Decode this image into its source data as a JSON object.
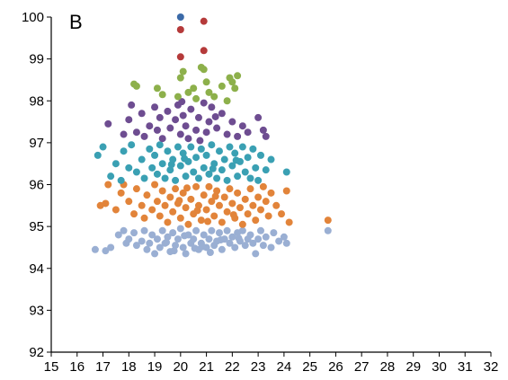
{
  "panel_label": "B",
  "colors": {
    "axis": "#000000",
    "series": {
      "a": "#9aafd3",
      "b": "#e2843a",
      "c": "#3aa0b3",
      "d": "#6e4d91",
      "e": "#8db04b",
      "f": "#b53a3a",
      "g": "#3b6aa8"
    }
  },
  "chart_data": {
    "type": "scatter",
    "title": "",
    "xlabel": "",
    "ylabel": "",
    "xlim": [
      15,
      32
    ],
    "ylim": [
      92,
      100
    ],
    "x_ticks": [
      "15",
      "16",
      "17",
      "18",
      "19",
      "20",
      "21",
      "22",
      "23",
      "24",
      "25",
      "26",
      "27",
      "28",
      "29",
      "30",
      "31",
      "32"
    ],
    "y_ticks": [
      "92",
      "93",
      "94",
      "95",
      "96",
      "97",
      "98",
      "99",
      "100"
    ],
    "grid": false,
    "legend": "none",
    "series": [
      {
        "key": "a",
        "color": "#9aafd3",
        "points": [
          [
            16.7,
            94.45
          ],
          [
            17.1,
            94.42
          ],
          [
            17.3,
            94.5
          ],
          [
            17.6,
            94.8
          ],
          [
            17.8,
            94.9
          ],
          [
            17.9,
            94.6
          ],
          [
            18.0,
            94.7
          ],
          [
            18.2,
            94.85
          ],
          [
            18.3,
            94.55
          ],
          [
            18.5,
            94.65
          ],
          [
            18.6,
            94.9
          ],
          [
            18.7,
            94.45
          ],
          [
            18.8,
            94.6
          ],
          [
            18.9,
            94.8
          ],
          [
            19.0,
            94.35
          ],
          [
            19.1,
            94.7
          ],
          [
            19.2,
            94.5
          ],
          [
            19.3,
            94.9
          ],
          [
            19.4,
            94.6
          ],
          [
            19.5,
            94.75
          ],
          [
            19.6,
            94.4
          ],
          [
            19.7,
            94.85
          ],
          [
            19.8,
            94.55
          ],
          [
            19.9,
            94.7
          ],
          [
            20.0,
            94.95
          ],
          [
            20.1,
            94.5
          ],
          [
            20.2,
            94.35
          ],
          [
            20.3,
            94.8
          ],
          [
            20.4,
            94.6
          ],
          [
            20.5,
            94.7
          ],
          [
            20.6,
            94.9
          ],
          [
            20.7,
            94.45
          ],
          [
            20.8,
            94.6
          ],
          [
            20.9,
            94.8
          ],
          [
            21.0,
            94.5
          ],
          [
            21.1,
            94.7
          ],
          [
            21.2,
            94.9
          ],
          [
            21.3,
            94.55
          ],
          [
            21.4,
            94.65
          ],
          [
            21.5,
            94.85
          ],
          [
            21.6,
            94.45
          ],
          [
            21.7,
            94.7
          ],
          [
            21.8,
            94.9
          ],
          [
            21.9,
            94.6
          ],
          [
            22.0,
            94.75
          ],
          [
            22.1,
            94.5
          ],
          [
            22.2,
            94.85
          ],
          [
            22.3,
            94.65
          ],
          [
            22.4,
            94.9
          ],
          [
            22.5,
            94.55
          ],
          [
            22.6,
            94.7
          ],
          [
            22.7,
            94.8
          ],
          [
            22.8,
            94.6
          ],
          [
            22.9,
            94.35
          ],
          [
            23.0,
            94.7
          ],
          [
            23.1,
            94.9
          ],
          [
            23.2,
            94.55
          ],
          [
            23.3,
            94.75
          ],
          [
            23.5,
            94.5
          ],
          [
            23.6,
            94.85
          ],
          [
            23.8,
            94.65
          ],
          [
            24.0,
            94.75
          ],
          [
            24.1,
            94.6
          ],
          [
            25.7,
            94.9
          ],
          [
            19.45,
            94.62
          ],
          [
            20.15,
            94.78
          ],
          [
            20.85,
            94.52
          ],
          [
            21.55,
            94.68
          ],
          [
            22.25,
            94.72
          ],
          [
            19.75,
            94.42
          ],
          [
            21.15,
            94.38
          ],
          [
            20.55,
            94.48
          ]
        ]
      },
      {
        "key": "b",
        "color": "#e2843a",
        "points": [
          [
            16.9,
            95.5
          ],
          [
            17.1,
            95.55
          ],
          [
            17.2,
            96.0
          ],
          [
            17.5,
            95.4
          ],
          [
            17.7,
            95.8
          ],
          [
            17.8,
            96.0
          ],
          [
            18.0,
            95.6
          ],
          [
            18.2,
            95.3
          ],
          [
            18.3,
            95.9
          ],
          [
            18.5,
            95.5
          ],
          [
            18.6,
            95.2
          ],
          [
            18.7,
            95.75
          ],
          [
            18.9,
            95.4
          ],
          [
            19.0,
            96.0
          ],
          [
            19.1,
            95.6
          ],
          [
            19.2,
            95.25
          ],
          [
            19.3,
            95.85
          ],
          [
            19.4,
            95.5
          ],
          [
            19.5,
            95.1
          ],
          [
            19.6,
            95.7
          ],
          [
            19.7,
            95.35
          ],
          [
            19.8,
            95.9
          ],
          [
            19.9,
            95.55
          ],
          [
            20.0,
            95.2
          ],
          [
            20.1,
            95.8
          ],
          [
            20.2,
            95.45
          ],
          [
            20.3,
            95.05
          ],
          [
            20.4,
            95.65
          ],
          [
            20.5,
            95.3
          ],
          [
            20.6,
            95.95
          ],
          [
            20.7,
            95.5
          ],
          [
            20.8,
            95.15
          ],
          [
            20.9,
            95.75
          ],
          [
            21.0,
            95.4
          ],
          [
            21.1,
            95.95
          ],
          [
            21.2,
            95.6
          ],
          [
            21.3,
            95.25
          ],
          [
            21.4,
            95.85
          ],
          [
            21.5,
            95.5
          ],
          [
            21.6,
            95.1
          ],
          [
            21.7,
            95.7
          ],
          [
            21.8,
            95.35
          ],
          [
            21.9,
            95.9
          ],
          [
            22.0,
            95.55
          ],
          [
            22.1,
            95.2
          ],
          [
            22.2,
            95.8
          ],
          [
            22.3,
            95.45
          ],
          [
            22.4,
            95.05
          ],
          [
            22.5,
            95.65
          ],
          [
            22.6,
            95.3
          ],
          [
            22.7,
            95.9
          ],
          [
            22.8,
            95.5
          ],
          [
            22.9,
            95.15
          ],
          [
            23.0,
            95.7
          ],
          [
            23.1,
            95.4
          ],
          [
            23.2,
            95.95
          ],
          [
            23.3,
            95.6
          ],
          [
            23.4,
            95.25
          ],
          [
            23.5,
            95.8
          ],
          [
            23.7,
            95.5
          ],
          [
            23.9,
            95.3
          ],
          [
            24.1,
            95.85
          ],
          [
            24.2,
            95.1
          ],
          [
            25.7,
            95.15
          ],
          [
            19.95,
            95.62
          ],
          [
            20.65,
            95.38
          ],
          [
            21.35,
            95.72
          ],
          [
            22.05,
            95.28
          ],
          [
            20.25,
            95.92
          ],
          [
            21.05,
            95.12
          ]
        ]
      },
      {
        "key": "c",
        "color": "#3aa0b3",
        "points": [
          [
            16.8,
            96.7
          ],
          [
            17.0,
            96.9
          ],
          [
            17.3,
            96.2
          ],
          [
            17.5,
            96.5
          ],
          [
            17.7,
            96.1
          ],
          [
            17.8,
            96.8
          ],
          [
            18.0,
            96.4
          ],
          [
            18.1,
            96.95
          ],
          [
            18.3,
            96.3
          ],
          [
            18.5,
            96.6
          ],
          [
            18.6,
            96.15
          ],
          [
            18.8,
            96.85
          ],
          [
            18.9,
            96.4
          ],
          [
            19.0,
            96.7
          ],
          [
            19.1,
            96.25
          ],
          [
            19.2,
            96.95
          ],
          [
            19.3,
            96.5
          ],
          [
            19.4,
            96.15
          ],
          [
            19.5,
            96.8
          ],
          [
            19.6,
            96.35
          ],
          [
            19.7,
            96.6
          ],
          [
            19.8,
            96.1
          ],
          [
            19.9,
            96.9
          ],
          [
            20.0,
            96.45
          ],
          [
            20.1,
            96.75
          ],
          [
            20.2,
            96.2
          ],
          [
            20.3,
            96.55
          ],
          [
            20.4,
            96.9
          ],
          [
            20.5,
            96.3
          ],
          [
            20.6,
            96.65
          ],
          [
            20.7,
            96.15
          ],
          [
            20.8,
            96.85
          ],
          [
            20.9,
            96.4
          ],
          [
            21.0,
            96.7
          ],
          [
            21.1,
            96.25
          ],
          [
            21.2,
            96.95
          ],
          [
            21.3,
            96.5
          ],
          [
            21.4,
            96.15
          ],
          [
            21.5,
            96.8
          ],
          [
            21.6,
            96.35
          ],
          [
            21.7,
            96.6
          ],
          [
            21.8,
            96.1
          ],
          [
            21.9,
            96.9
          ],
          [
            22.0,
            96.45
          ],
          [
            22.1,
            96.75
          ],
          [
            22.2,
            96.2
          ],
          [
            22.3,
            96.55
          ],
          [
            22.4,
            96.9
          ],
          [
            22.5,
            96.3
          ],
          [
            22.6,
            96.65
          ],
          [
            22.7,
            96.15
          ],
          [
            22.8,
            96.85
          ],
          [
            22.9,
            96.4
          ],
          [
            23.0,
            96.1
          ],
          [
            23.1,
            96.7
          ],
          [
            23.3,
            96.35
          ],
          [
            23.5,
            96.6
          ],
          [
            24.1,
            96.3
          ],
          [
            20.15,
            96.62
          ],
          [
            21.25,
            96.38
          ],
          [
            19.65,
            96.48
          ],
          [
            22.15,
            96.58
          ]
        ]
      },
      {
        "key": "d",
        "color": "#6e4d91",
        "points": [
          [
            17.2,
            97.45
          ],
          [
            17.8,
            97.2
          ],
          [
            18.0,
            97.55
          ],
          [
            18.1,
            97.9
          ],
          [
            18.3,
            97.25
          ],
          [
            18.5,
            97.7
          ],
          [
            18.6,
            97.15
          ],
          [
            18.8,
            97.4
          ],
          [
            19.0,
            97.85
          ],
          [
            19.1,
            97.3
          ],
          [
            19.2,
            97.6
          ],
          [
            19.3,
            97.1
          ],
          [
            19.5,
            97.75
          ],
          [
            19.6,
            97.35
          ],
          [
            19.8,
            97.55
          ],
          [
            19.9,
            97.9
          ],
          [
            20.0,
            97.2
          ],
          [
            20.1,
            97.65
          ],
          [
            20.2,
            97.4
          ],
          [
            20.3,
            97.1
          ],
          [
            20.4,
            97.8
          ],
          [
            20.6,
            97.3
          ],
          [
            20.7,
            97.6
          ],
          [
            20.9,
            97.95
          ],
          [
            21.0,
            97.25
          ],
          [
            21.1,
            97.5
          ],
          [
            21.2,
            97.85
          ],
          [
            21.4,
            97.35
          ],
          [
            21.6,
            97.7
          ],
          [
            21.8,
            97.2
          ],
          [
            22.0,
            97.5
          ],
          [
            22.2,
            97.15
          ],
          [
            22.4,
            97.4
          ],
          [
            22.6,
            97.25
          ],
          [
            23.0,
            97.6
          ],
          [
            23.2,
            97.3
          ],
          [
            23.3,
            97.15
          ],
          [
            20.05,
            97.98
          ],
          [
            20.75,
            97.05
          ],
          [
            21.35,
            97.62
          ]
        ]
      },
      {
        "key": "e",
        "color": "#8db04b",
        "points": [
          [
            18.2,
            98.4
          ],
          [
            18.3,
            98.35
          ],
          [
            19.1,
            98.3
          ],
          [
            19.3,
            98.15
          ],
          [
            19.9,
            98.1
          ],
          [
            20.0,
            98.55
          ],
          [
            20.1,
            98.7
          ],
          [
            20.3,
            98.2
          ],
          [
            20.5,
            98.3
          ],
          [
            20.6,
            98.05
          ],
          [
            20.8,
            98.8
          ],
          [
            20.9,
            98.75
          ],
          [
            21.0,
            98.45
          ],
          [
            21.1,
            98.2
          ],
          [
            21.3,
            98.1
          ],
          [
            21.6,
            98.35
          ],
          [
            21.9,
            98.55
          ],
          [
            22.0,
            98.45
          ],
          [
            22.1,
            98.3
          ],
          [
            22.2,
            98.6
          ],
          [
            21.8,
            98.0
          ]
        ]
      },
      {
        "key": "f",
        "color": "#b53a3a",
        "points": [
          [
            20.0,
            99.7
          ],
          [
            20.0,
            99.05
          ],
          [
            20.9,
            99.9
          ],
          [
            20.9,
            99.2
          ]
        ]
      },
      {
        "key": "g",
        "color": "#3b6aa8",
        "points": [
          [
            20.0,
            100.0
          ]
        ]
      }
    ]
  }
}
